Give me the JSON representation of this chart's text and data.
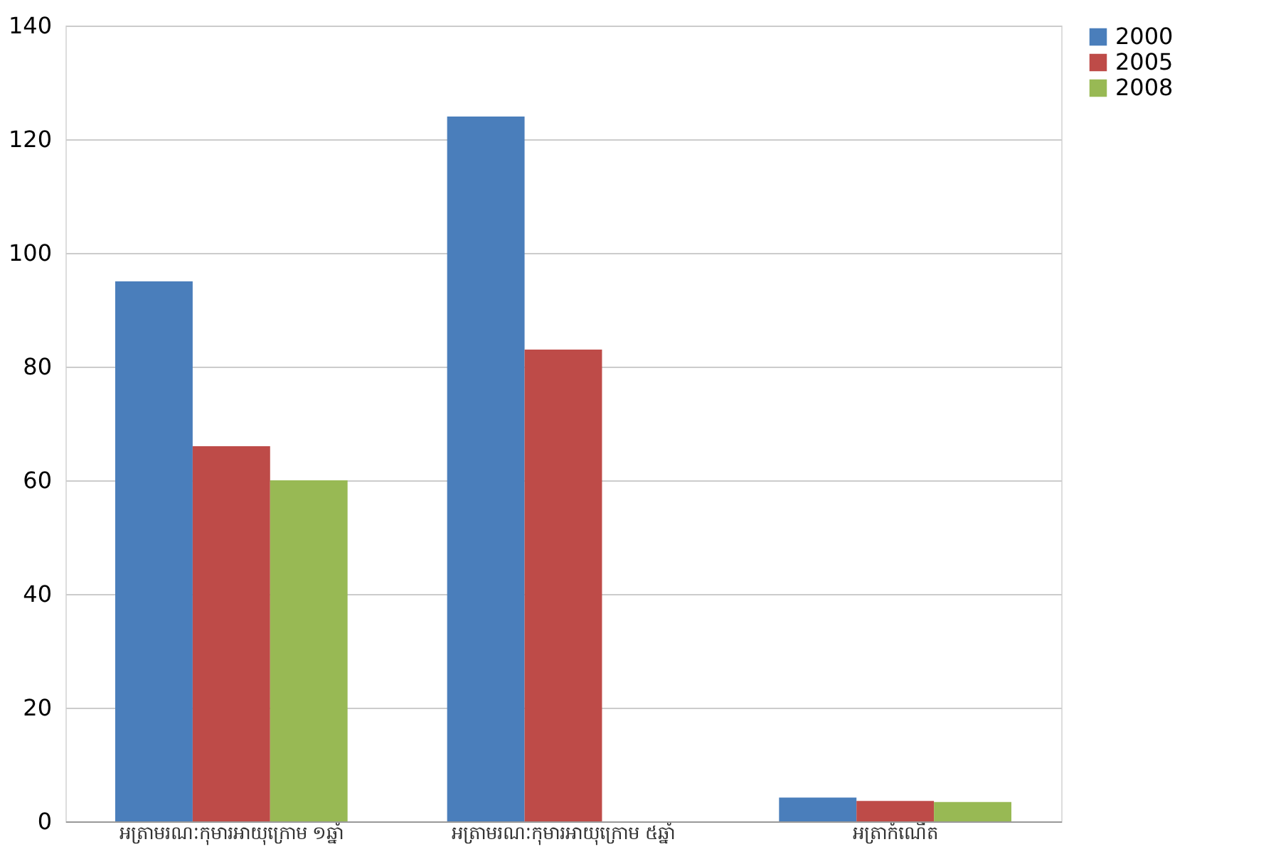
{
  "chart_data": {
    "type": "bar",
    "categories": [
      "អត្រាមរណៈកុមារអាយុក្រោម ១ឆ្នាំ",
      "អត្រាមរណៈកុមារអាយុក្រោម ៥ឆ្នាំ",
      "អត្រាកំណើត"
    ],
    "series": [
      {
        "name": "2000",
        "color": "#4a7ebb",
        "values": [
          95,
          124,
          4.2
        ]
      },
      {
        "name": "2005",
        "color": "#be4b48",
        "values": [
          66,
          83,
          3.6
        ]
      },
      {
        "name": "2008",
        "color": "#98b954",
        "values": [
          60,
          null,
          3.4
        ]
      }
    ],
    "ylim": [
      0,
      140
    ],
    "yticks": [
      0,
      20,
      40,
      60,
      80,
      100,
      120,
      140
    ],
    "grid": "y",
    "legend": "right"
  }
}
